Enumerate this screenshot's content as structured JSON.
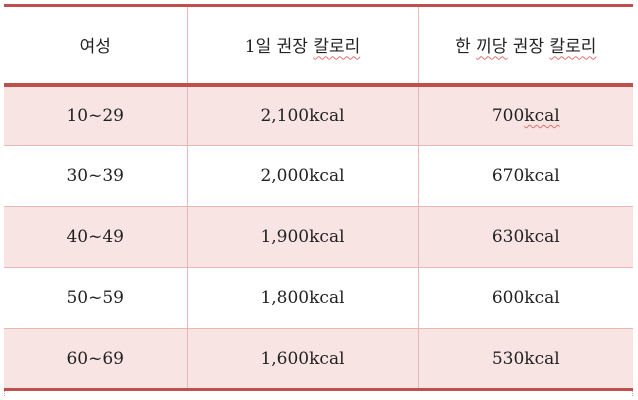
{
  "table": {
    "headers": {
      "col1": "여성",
      "col2_prefix": "1일 권장 ",
      "col2_word": "칼로리",
      "col3_prefix": "한 ",
      "col3_word1": "끼당",
      "col3_mid": " 권장 ",
      "col3_word2": "칼로리"
    },
    "rows": [
      {
        "age": "10~29",
        "daily_num": "2,100",
        "daily_unit": "kcal",
        "meal_num": "700",
        "meal_unit": "kcal"
      },
      {
        "age": "30~39",
        "daily_num": "2,000",
        "daily_unit": "kcal",
        "meal_num": "670",
        "meal_unit": "kcal"
      },
      {
        "age": "40~49",
        "daily_num": "1,900",
        "daily_unit": "kcal",
        "meal_num": "630",
        "meal_unit": "kcal"
      },
      {
        "age": "50~59",
        "daily_num": "1,800",
        "daily_unit": "kcal",
        "meal_num": "600",
        "meal_unit": "kcal"
      },
      {
        "age": "60~69",
        "daily_num": "1,600",
        "daily_unit": "kcal",
        "meal_num": "530",
        "meal_unit": "kcal"
      }
    ]
  },
  "colors": {
    "accent_border": "#c0504d",
    "thin_border": "#e6b8b7",
    "shaded_row": "#f8e4e3",
    "spellcheck": "#e07070"
  }
}
